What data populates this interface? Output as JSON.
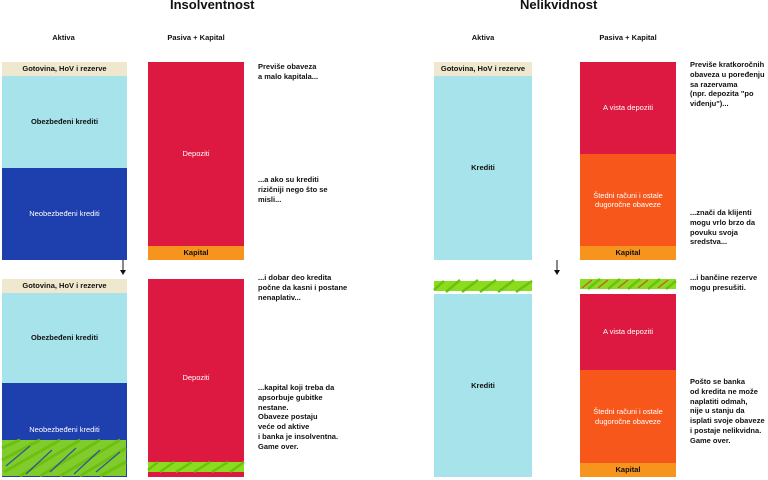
{
  "titles": {
    "insolvency": "Insolventnost",
    "illiquidity": "Nelikvidnost"
  },
  "column_labels": {
    "assets": "Aktiva",
    "liabilities": "Pasiva + Kapital"
  },
  "blocks": {
    "cash": "Gotovina, HoV i rezerve",
    "secured_loans": "Obezbeđeni krediti",
    "unsecured_loans": "Neobezbeđeni krediti",
    "deposits": "Depoziti",
    "capital": "Kapital",
    "loans": "Krediti",
    "demand_deposits": "A vista depoziti",
    "savings": "Štedni računi i ostale dugoročne obaveze"
  },
  "notes": {
    "ins_1": "Previše obaveza\na malo kapitala...",
    "ins_2": "...a ako su krediti\nrizičniji nego što se\nmisli...",
    "ins_3": "...i dobar deo kredita\npočne da kasni i postane\nnenaplativ...",
    "ins_4": "...kapital koji treba da\napsorbuje gubitke\nnestane.\nObaveze postaju\nveće od aktive\ni banka je insolventna.\nGame over.",
    "ill_1": "Previše kratkoročnih\nobaveza u poređenju\nsa razervama\n(npr. depozita \"po\nviđenju\")...",
    "ill_2": "...znači da klijenti\nmogu vrlo brzo da\npovuku svoja\nsredstva...",
    "ill_3": "...i bančine rezerve\nmogu presušiti.",
    "ill_4": "Pošto se banka\nod kredita ne može\nnaplatiti odmah,\nnije u stanju da\nisplati svoje obaveze\ni postaje nelikvidna.\nGame over."
  },
  "colors": {
    "cream": "#efe8cf",
    "light_blue": "#a7e3ea",
    "dark_blue": "#1e3fae",
    "red": "#dd1942",
    "orange_dark": "#f7571b",
    "orange": "#f7941d",
    "green_hatch": "#8cdc1e"
  },
  "icons": {
    "arrow": "down-arrow-icon",
    "loss_marking": "green-scribble-hatch"
  }
}
